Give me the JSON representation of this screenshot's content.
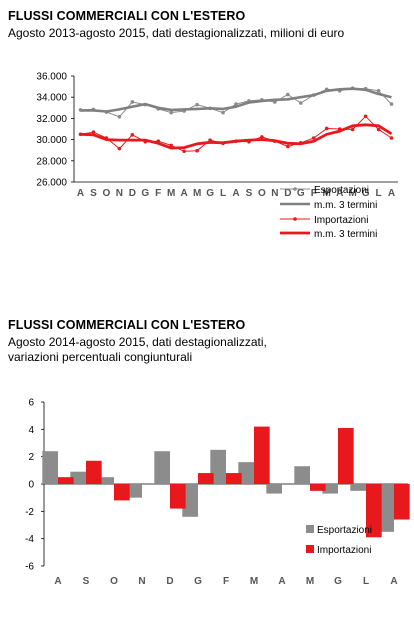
{
  "chart1": {
    "title": "FLUSSI COMMERCIALI CON L'ESTERO",
    "subtitle": "Agosto 2013-agosto 2015, dati destagionalizzati, milioni di euro",
    "legend": [
      "Esportazioni",
      "m.m. 3 termini",
      "Importazioni",
      "m.m. 3 termini"
    ]
  },
  "chart2": {
    "title": "FLUSSI COMMERCIALI CON L'ESTERO",
    "subtitle_lines": [
      "Agosto 2014-agosto 2015, dati destagionalizzati,",
      "variazioni percentuali congiunturali"
    ],
    "legend": [
      "Esportazioni",
      "Importazioni"
    ]
  },
  "colors": {
    "exports": "#8c8c8c",
    "exports_ma": "#808080",
    "imports": "#e8191d",
    "imports_ma": "#e8191d"
  },
  "chart_data": [
    {
      "type": "line",
      "title": "FLUSSI COMMERCIALI CON L'ESTERO",
      "subtitle": "Agosto 2013-agosto 2015, dati destagionalizzati, milioni di euro",
      "categories": [
        "A",
        "S",
        "O",
        "N",
        "D",
        "G",
        "F",
        "M",
        "A",
        "M",
        "G",
        "L",
        "A",
        "S",
        "O",
        "N",
        "D",
        "G",
        "F",
        "M",
        "A",
        "M",
        "G",
        "L",
        "A"
      ],
      "ylim": [
        26000,
        36000
      ],
      "yticks": [
        "26.000",
        "28.000",
        "30.000",
        "32.000",
        "34.000",
        "36.000"
      ],
      "grid": false,
      "legend_position": "bottom-right",
      "series": [
        {
          "name": "Esportazioni",
          "values": [
            32800,
            32850,
            32600,
            32150,
            33550,
            33300,
            32900,
            32550,
            32700,
            33300,
            32950,
            32550,
            33350,
            33650,
            33750,
            33550,
            34250,
            33450,
            34200,
            34750,
            34600,
            34850,
            34800,
            34600,
            33350
          ]
        },
        {
          "name": "m.m. 3 termini",
          "values": [
            32750,
            32750,
            32650,
            32850,
            33100,
            33350,
            33000,
            32800,
            32850,
            32900,
            32950,
            32900,
            33100,
            33500,
            33650,
            33750,
            33800,
            34000,
            34200,
            34600,
            34750,
            34800,
            34700,
            34300,
            34000
          ]
        },
        {
          "name": "Importazioni",
          "values": [
            30500,
            30700,
            30150,
            29150,
            30450,
            29800,
            29850,
            29450,
            28900,
            28950,
            29950,
            29650,
            29850,
            29800,
            30250,
            29850,
            29350,
            29700,
            30150,
            31050,
            31000,
            30950,
            32200,
            30950,
            30150
          ]
        },
        {
          "name": "m.m. 3 termini",
          "values": [
            30500,
            30450,
            30000,
            29950,
            29950,
            29950,
            29650,
            29200,
            29250,
            29600,
            29750,
            29700,
            29850,
            29950,
            30000,
            29900,
            29650,
            29600,
            29850,
            30500,
            30800,
            31300,
            31400,
            31300,
            30550
          ]
        }
      ]
    },
    {
      "type": "bar",
      "title": "FLUSSI COMMERCIALI CON L'ESTERO",
      "subtitle": "Agosto 2014-agosto 2015, dati destagionalizzati, variazioni percentuali congiunturali",
      "categories": [
        "A",
        "S",
        "O",
        "N",
        "D",
        "G",
        "F",
        "M",
        "A",
        "M",
        "G",
        "L",
        "A"
      ],
      "ylim": [
        -6,
        6
      ],
      "yticks": [
        "-6",
        "-4",
        "-2",
        "0",
        "2",
        "4",
        "6"
      ],
      "grid": false,
      "legend_position": "bottom-right",
      "series": [
        {
          "name": "Esportazioni",
          "values": [
            2.4,
            0.9,
            0.5,
            -1.0,
            2.4,
            -2.4,
            2.5,
            1.6,
            -0.7,
            1.3,
            -0.7,
            -0.5,
            -3.5
          ]
        },
        {
          "name": "Importazioni",
          "values": [
            0.5,
            1.7,
            -1.2,
            0.0,
            -1.8,
            0.8,
            0.8,
            4.2,
            0.0,
            -0.5,
            4.1,
            -3.9,
            -2.6
          ]
        }
      ]
    }
  ]
}
